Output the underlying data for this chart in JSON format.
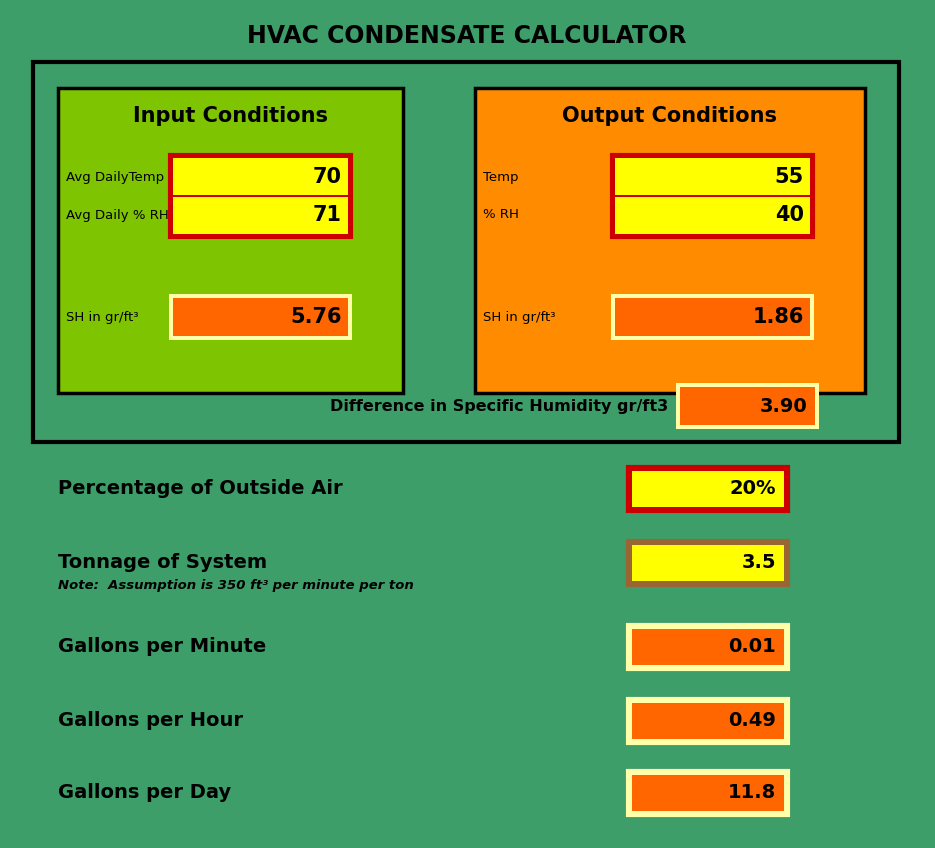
{
  "title": "HVAC CONDENSATE CALCULATOR",
  "bg_color": "#3d9e6a",
  "title_fontsize": 17,
  "input_bg": "#7fc400",
  "output_bg": "#ff8c00",
  "input_title": "Input Conditions",
  "output_title": "Output Conditions",
  "ic_fields": [
    {
      "label": "Avg DailyTemp",
      "value": "70"
    },
    {
      "label": "Avg Daily % RH",
      "value": "71"
    }
  ],
  "oc_fields": [
    {
      "label": "Temp",
      "value": "55"
    },
    {
      "label": "% RH",
      "value": "40"
    }
  ],
  "ic_sh_label": "SH in gr/ft³",
  "ic_sh_value": "5.76",
  "oc_sh_label": "SH in gr/ft³",
  "oc_sh_value": "1.86",
  "diff_label": "Difference in Specific Humidity gr/ft3",
  "diff_value": "3.90",
  "yellow_box_color": "#ffff00",
  "orange_box_color": "#ff6600",
  "red_border": "#cc0000",
  "cream_border": "#ffffaa",
  "rows": [
    {
      "label": "Percentage of Outside Air",
      "value": "20%",
      "box_color": "#ffff00",
      "border_color": "#cc0000",
      "sublabel": null
    },
    {
      "label": "Tonnage of System",
      "value": "3.5",
      "box_color": "#ffff00",
      "border_color": "#996633",
      "sublabel": "Note:  Assumption is 350 ft³ per minute per ton"
    },
    {
      "label": "Gallons per Minute",
      "value": "0.01",
      "box_color": "#ff6600",
      "border_color": "#ffffaa",
      "sublabel": null
    },
    {
      "label": "Gallons per Hour",
      "value": "0.49",
      "box_color": "#ff6600",
      "border_color": "#ffffaa",
      "sublabel": null
    },
    {
      "label": "Gallons per Day",
      "value": "11.8",
      "box_color": "#ff6600",
      "border_color": "#ffffaa",
      "sublabel": null
    }
  ]
}
